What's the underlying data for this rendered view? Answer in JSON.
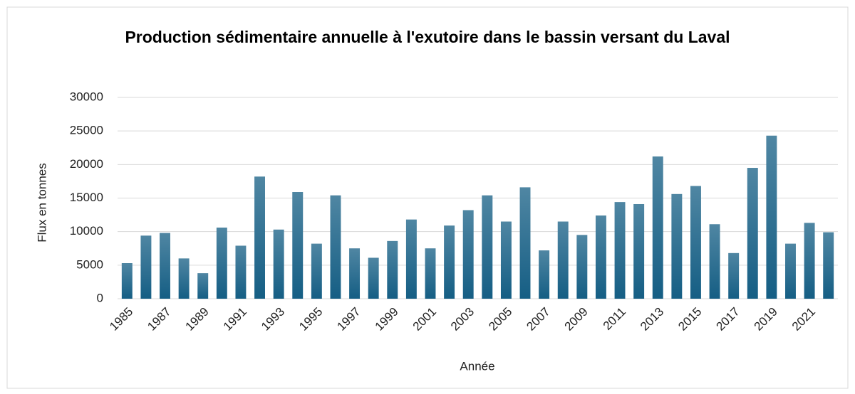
{
  "chart_data": {
    "type": "bar",
    "title": "Production sédimentaire annuelle à l'exutoire dans le bassin versant du Laval",
    "xlabel": "Année",
    "ylabel": "Flux en tonnes",
    "categories": [
      "1985",
      null,
      "1987",
      null,
      "1989",
      null,
      "1991",
      null,
      "1993",
      null,
      "1995",
      null,
      "1997",
      null,
      "1999",
      null,
      "2001",
      null,
      "2003",
      null,
      "2005",
      null,
      "2007",
      null,
      "2009",
      null,
      "2011",
      null,
      "2013",
      null,
      "2015",
      null,
      "2017",
      null,
      "2019",
      null,
      "2021",
      null
    ],
    "values": [
      5300,
      9400,
      9800,
      6000,
      3800,
      10600,
      7900,
      18200,
      10300,
      15900,
      8200,
      15400,
      7500,
      6100,
      8600,
      11800,
      7500,
      10900,
      13200,
      15400,
      11500,
      16600,
      7200,
      11500,
      9500,
      12400,
      14400,
      14100,
      21200,
      15600,
      16800,
      11100,
      6800,
      19500,
      24300,
      8200,
      11300,
      9900
    ],
    "color": "#155e84",
    "ylim": [
      0,
      30000
    ],
    "yticks": [
      0,
      5000,
      10000,
      15000,
      20000,
      25000,
      30000
    ],
    "grid": true
  }
}
